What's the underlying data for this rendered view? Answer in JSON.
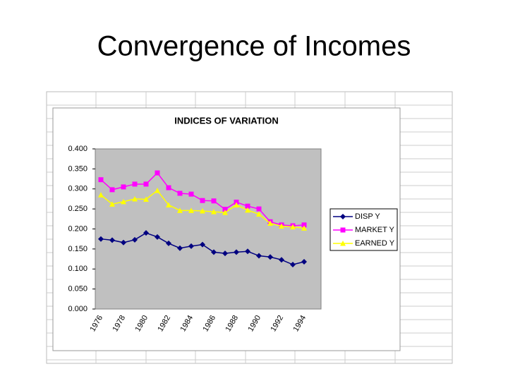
{
  "slide_title": "Convergence of Incomes",
  "chart_data": {
    "type": "line",
    "title": "INDICES OF VARIATION",
    "categories": [
      "1976",
      null,
      "1978",
      null,
      "1980",
      null,
      "1982",
      null,
      "1984",
      null,
      "1986",
      null,
      "1988",
      null,
      "1990",
      null,
      "1992",
      null,
      "1994"
    ],
    "series": [
      {
        "name": "DISP Y",
        "color": "#000080",
        "marker": "diamond",
        "values": [
          0.175,
          0.172,
          0.166,
          0.173,
          0.19,
          0.18,
          0.164,
          0.152,
          0.157,
          0.161,
          0.142,
          0.139,
          0.142,
          0.144,
          0.133,
          0.13,
          0.123,
          0.111,
          0.118
        ]
      },
      {
        "name": "MARKET Y",
        "color": "#ff00ff",
        "marker": "square",
        "values": [
          0.323,
          0.298,
          0.305,
          0.312,
          0.312,
          0.34,
          0.303,
          0.289,
          0.287,
          0.271,
          0.27,
          0.249,
          0.267,
          0.257,
          0.25,
          0.218,
          0.21,
          0.208,
          0.21
        ]
      },
      {
        "name": "EARNED Y",
        "color": "#ffff00",
        "marker": "triangle",
        "values": [
          0.285,
          0.262,
          0.268,
          0.275,
          0.274,
          0.296,
          0.26,
          0.246,
          0.246,
          0.245,
          0.243,
          0.241,
          0.26,
          0.247,
          0.237,
          0.214,
          0.207,
          0.205,
          0.202
        ]
      }
    ],
    "ylim": [
      0,
      0.4
    ],
    "yticks": [
      {
        "value": 0,
        "label": "0.000"
      },
      {
        "value": 0.05,
        "label": "0.050"
      },
      {
        "value": 0.1,
        "label": "0.100"
      },
      {
        "value": 0.15,
        "label": "0.150"
      },
      {
        "value": 0.2,
        "label": "0.200"
      },
      {
        "value": 0.25,
        "label": "0.250"
      },
      {
        "value": 0.3,
        "label": "0.300"
      },
      {
        "value": 0.35,
        "label": "0.350"
      },
      {
        "value": 0.4,
        "label": "0.400"
      }
    ],
    "grid": false,
    "legend": "right"
  }
}
